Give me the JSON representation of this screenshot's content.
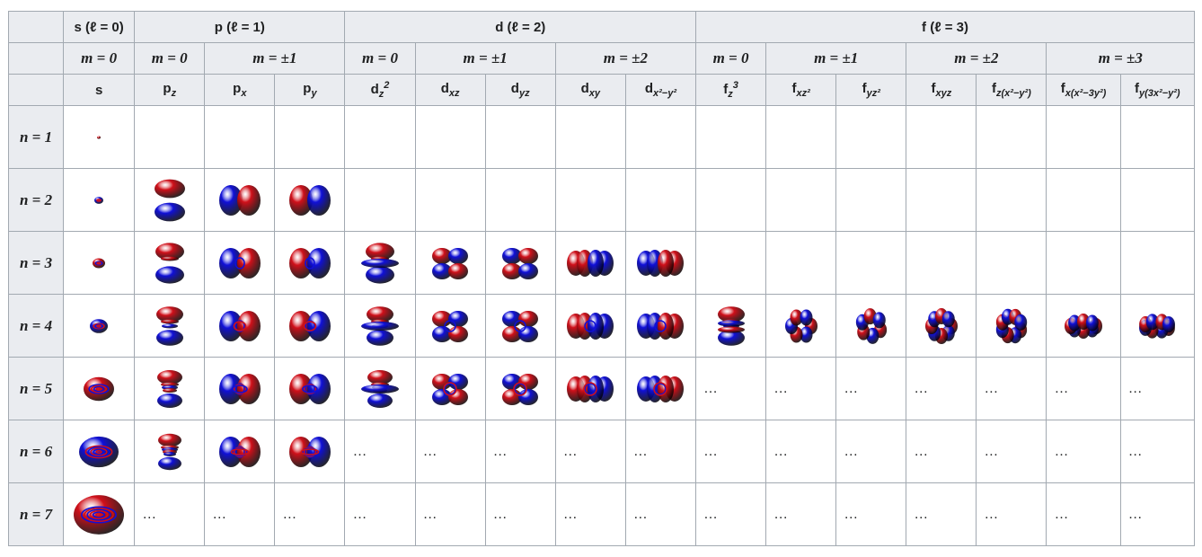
{
  "header": {
    "groups": [
      {
        "letter": "s",
        "label": "s (ℓ = 0)"
      },
      {
        "letter": "p",
        "label": "p (ℓ = 1)"
      },
      {
        "letter": "d",
        "label": "d (ℓ = 2)"
      },
      {
        "letter": "f",
        "label": "f (ℓ = 3)"
      }
    ],
    "m_values": [
      "m = 0",
      "m = 0",
      "m = ±1",
      "m = 0",
      "m = ±1",
      "m = ±2",
      "m = 0",
      "m = ±1",
      "m = ±2",
      "m = ±3"
    ],
    "orbitals": [
      {
        "base": "s",
        "sub": "",
        "sup": ""
      },
      {
        "base": "p",
        "sub": "z",
        "sup": ""
      },
      {
        "base": "p",
        "sub": "x",
        "sup": ""
      },
      {
        "base": "p",
        "sub": "y",
        "sup": ""
      },
      {
        "base": "d",
        "sub": "z",
        "sup": "2"
      },
      {
        "base": "d",
        "sub": "xz",
        "sup": ""
      },
      {
        "base": "d",
        "sub": "yz",
        "sup": ""
      },
      {
        "base": "d",
        "sub": "xy",
        "sup": ""
      },
      {
        "base": "d",
        "sub": "x²−y²",
        "sup": ""
      },
      {
        "base": "f",
        "sub": "z",
        "sup": "3"
      },
      {
        "base": "f",
        "sub": "xz²",
        "sup": ""
      },
      {
        "base": "f",
        "sub": "yz²",
        "sup": ""
      },
      {
        "base": "f",
        "sub": "xyz",
        "sup": ""
      },
      {
        "base": "f",
        "sub": "z(x²−y²)",
        "sup": ""
      },
      {
        "base": "f",
        "sub": "x(x²−3y²)",
        "sup": ""
      },
      {
        "base": "f",
        "sub": "y(3x²−y²)",
        "sup": ""
      }
    ]
  },
  "rows": [
    {
      "label": "n = 1",
      "cells": [
        "img",
        "",
        "",
        "",
        "",
        "",
        "",
        "",
        "",
        "",
        "",
        "",
        "",
        "",
        "",
        ""
      ]
    },
    {
      "label": "n = 2",
      "cells": [
        "img",
        "img",
        "img",
        "img",
        "",
        "",
        "",
        "",
        "",
        "",
        "",
        "",
        "",
        "",
        "",
        ""
      ]
    },
    {
      "label": "n = 3",
      "cells": [
        "img",
        "img",
        "img",
        "img",
        "img",
        "img",
        "img",
        "img",
        "img",
        "",
        "",
        "",
        "",
        "",
        "",
        ""
      ]
    },
    {
      "label": "n = 4",
      "cells": [
        "img",
        "img",
        "img",
        "img",
        "img",
        "img",
        "img",
        "img",
        "img",
        "img",
        "img",
        "img",
        "img",
        "img",
        "img",
        "img"
      ]
    },
    {
      "label": "n = 5",
      "cells": [
        "img",
        "img",
        "img",
        "img",
        "img",
        "img",
        "img",
        "img",
        "img",
        "…",
        "…",
        "…",
        "…",
        "…",
        "…",
        "…"
      ]
    },
    {
      "label": "n = 6",
      "cells": [
        "img",
        "img",
        "img",
        "img",
        "…",
        "…",
        "…",
        "…",
        "…",
        "…",
        "…",
        "…",
        "…",
        "…",
        "…",
        "…"
      ]
    },
    {
      "label": "n = 7",
      "cells": [
        "img",
        "…",
        "…",
        "…",
        "…",
        "…",
        "…",
        "…",
        "…",
        "…",
        "…",
        "…",
        "…",
        "…",
        "…",
        "…"
      ]
    }
  ],
  "colors": {
    "positive_lobe": "#d0101a",
    "negative_lobe": "#1010d8",
    "header_bg": "#eaecf0",
    "border": "#a2a9b1"
  }
}
